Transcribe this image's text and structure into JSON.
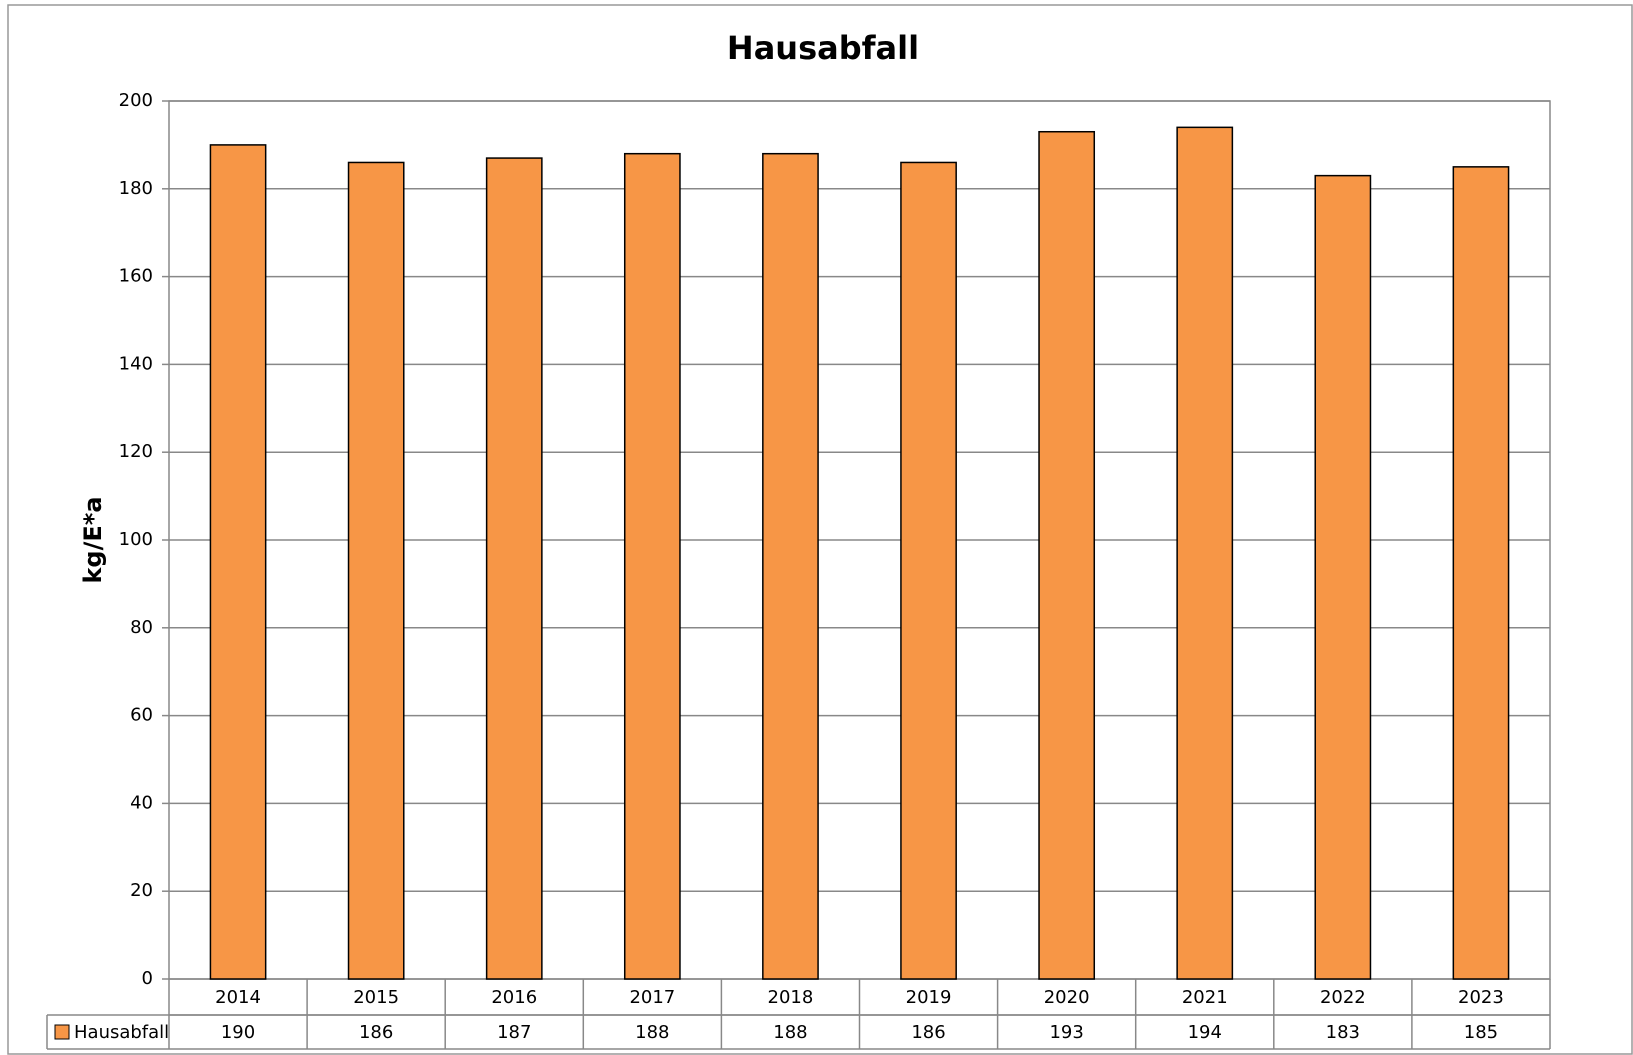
{
  "chart_data": {
    "type": "bar",
    "title": "Hausabfall",
    "y_label": "kg/E*a",
    "categories": [
      "2014",
      "2015",
      "2016",
      "2017",
      "2018",
      "2019",
      "2020",
      "2021",
      "2022",
      "2023"
    ],
    "series": [
      {
        "name": "Hausabfall",
        "color": "#f79646",
        "values": [
          190,
          186,
          187,
          188,
          188,
          186,
          193,
          194,
          183,
          185
        ]
      }
    ],
    "ylim": [
      0,
      200
    ],
    "yticks": [
      0,
      20,
      40,
      60,
      80,
      100,
      120,
      140,
      160,
      180,
      200
    ],
    "grid": true,
    "data_table": true
  }
}
